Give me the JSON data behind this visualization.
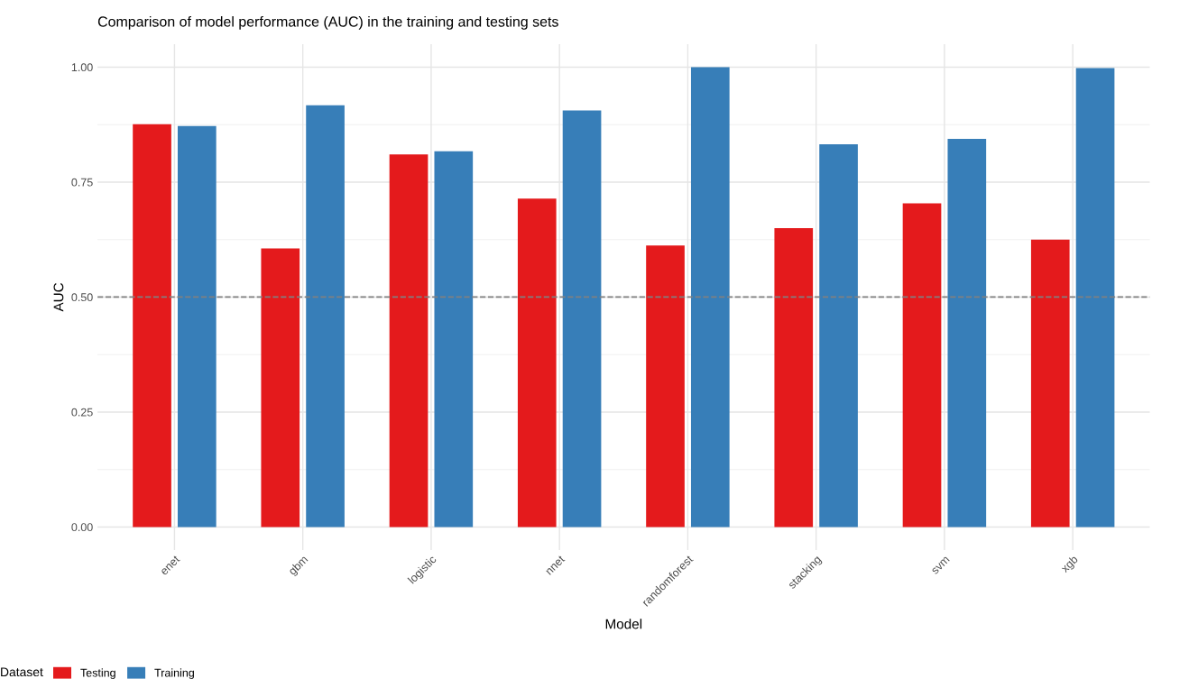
{
  "chart_data": {
    "type": "bar",
    "title": "Comparison of model performance (AUC) in the training and testing sets",
    "xlabel": "Model",
    "ylabel": "AUC",
    "legend_title": "Dataset",
    "categories": [
      "enet",
      "gbm",
      "logistic",
      "nnet",
      "randomforest",
      "stacking",
      "svm",
      "xgb"
    ],
    "series": [
      {
        "name": "Testing",
        "color": "#e41a1c",
        "values": [
          0.876,
          0.606,
          0.81,
          0.714,
          0.612,
          0.65,
          0.704,
          0.625
        ]
      },
      {
        "name": "Training",
        "color": "#377eb8",
        "values": [
          0.872,
          0.917,
          0.817,
          0.906,
          1.0,
          0.832,
          0.844,
          0.998
        ]
      }
    ],
    "ylim": [
      -0.05,
      1.05
    ],
    "yticks": [
      {
        "value": 0,
        "label": "0.00"
      },
      {
        "value": 0.25,
        "label": "0.25"
      },
      {
        "value": 0.5,
        "label": "0.50"
      },
      {
        "value": 0.75,
        "label": "0.75"
      },
      {
        "value": 1,
        "label": "1.00"
      }
    ],
    "ref_lines": [
      {
        "axis": "y",
        "value": 0.5,
        "label": null,
        "color": "#808080",
        "line_style": "dashed"
      }
    ],
    "grid": true,
    "legend": "bottom"
  }
}
